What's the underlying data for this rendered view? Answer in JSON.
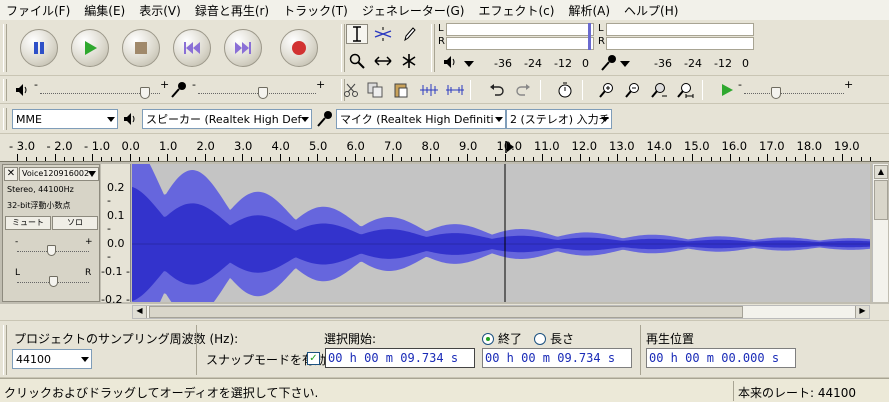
{
  "menubar": {
    "items": [
      "ファイル(F)",
      "編集(E)",
      "表示(V)",
      "録音と再生(r)",
      "トラック(T)",
      "ジェネレーター(G)",
      "エフェクト(c)",
      "解析(A)",
      "ヘルプ(H)"
    ]
  },
  "meters": {
    "left_label": "L",
    "right_label": "R",
    "play_scale": [
      "-36",
      "-24",
      "-12",
      "0"
    ],
    "record_scale": [
      "-36",
      "-24",
      "-12",
      "0"
    ]
  },
  "device": {
    "host": "MME",
    "output": "スピーカー (Realtek High Def",
    "input": "マイク (Realtek High Definiti",
    "channels": "2 (ステレオ) 入力チ"
  },
  "ruler": {
    "ticks": [
      "- 3.0",
      "- 2.0",
      "- 1.0",
      "0.0",
      "1.0",
      "2.0",
      "3.0",
      "4.0",
      "5.0",
      "6.0",
      "7.0",
      "8.0",
      "9.0",
      "10.0",
      "11.0",
      "12.0",
      "13.0",
      "14.0",
      "15.0",
      "16.0",
      "17.0",
      "18.0",
      "19.0"
    ]
  },
  "track": {
    "name": "Voice120916002",
    "info1": "Stereo, 44100Hz",
    "info2": "32-bit浮動小数点",
    "mute": "ミュート",
    "solo": "ソロ",
    "pan_left": "L",
    "pan_right": "R",
    "gain_minus": "-",
    "gain_plus": "+",
    "yaxis": [
      "0.2 -",
      "0.1 -",
      "0.0 -",
      "-0.1 -",
      "-0.2 -"
    ]
  },
  "selection_bar": {
    "rate_label": "プロジェクトのサンプリング周波数 (Hz):",
    "rate_value": "44100",
    "snap_label": "スナップモードを有効",
    "start_label": "選択開始:",
    "end_label": "終了",
    "length_label": "長さ",
    "position_label": "再生位置",
    "start_time": "00 h 00 m 09.734 s",
    "end_time": "00 h 00 m 09.734 s",
    "position_time": "00 h 00 m 00.000 s"
  },
  "status": {
    "message": "クリックおよびドラッグしてオーディオを選択して下さい.",
    "rate": "本来のレート: 44100"
  },
  "colors": {
    "waveform": "#3333CC",
    "waveform_outer": "#6666DD",
    "track_bg": "#C4C4C4",
    "timecode": "#1A2BB7"
  }
}
